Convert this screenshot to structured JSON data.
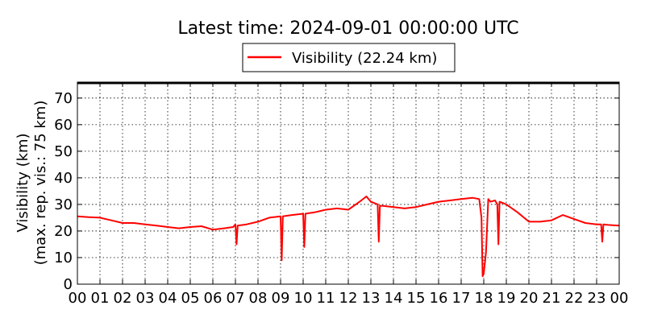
{
  "chart_data": {
    "type": "line",
    "title": "Latest time: 2024-09-01 00:00:00 UTC",
    "ylabel_line1": "Visibility (km)",
    "ylabel_line2": "(max. rep. vis.: 75 km)",
    "xlabel": "",
    "ylim": [
      0,
      76
    ],
    "xlim": [
      0,
      24
    ],
    "grid": true,
    "legend_position": "top-center-outside",
    "yticks": [
      0,
      10,
      20,
      30,
      40,
      50,
      60,
      70
    ],
    "xticks": [
      0,
      1,
      2,
      3,
      4,
      5,
      6,
      7,
      8,
      9,
      10,
      11,
      12,
      13,
      14,
      15,
      16,
      17,
      18,
      19,
      20,
      21,
      22,
      23,
      24
    ],
    "xtick_labels": [
      "00",
      "01",
      "02",
      "03",
      "04",
      "05",
      "06",
      "07",
      "08",
      "09",
      "10",
      "11",
      "12",
      "13",
      "14",
      "15",
      "16",
      "17",
      "18",
      "19",
      "20",
      "21",
      "22",
      "23",
      "00"
    ],
    "series": [
      {
        "name": "Visibility (22.24 km)",
        "color": "#ff0000",
        "x": [
          0.0,
          0.5,
          1.0,
          1.5,
          2.0,
          2.5,
          3.0,
          3.5,
          4.0,
          4.5,
          5.0,
          5.5,
          6.0,
          6.5,
          6.9,
          7.0,
          7.05,
          7.1,
          7.5,
          8.0,
          8.5,
          9.0,
          9.05,
          9.1,
          9.5,
          10.0,
          10.05,
          10.1,
          10.5,
          11.0,
          11.5,
          12.0,
          12.5,
          12.8,
          13.0,
          13.3,
          13.35,
          13.4,
          13.5,
          14.0,
          14.5,
          15.0,
          15.5,
          16.0,
          16.5,
          17.0,
          17.5,
          17.8,
          17.9,
          17.95,
          18.0,
          18.1,
          18.2,
          18.3,
          18.5,
          18.6,
          18.65,
          18.7,
          19.0,
          19.5,
          20.0,
          20.5,
          21.0,
          21.5,
          22.0,
          22.5,
          23.0,
          23.2,
          23.25,
          23.3,
          23.5,
          24.0
        ],
        "y": [
          25.5,
          25.2,
          25.0,
          24.0,
          23.0,
          23.0,
          22.5,
          22.0,
          21.5,
          21.0,
          21.5,
          21.8,
          20.5,
          21.0,
          21.5,
          22.5,
          15.0,
          22.0,
          22.5,
          23.5,
          25.0,
          25.5,
          9.0,
          25.5,
          26.0,
          26.5,
          14.0,
          26.5,
          27.0,
          28.0,
          28.5,
          28.0,
          31.0,
          33.0,
          31.0,
          30.0,
          16.0,
          29.5,
          29.5,
          29.0,
          28.5,
          29.0,
          30.0,
          31.0,
          31.5,
          32.0,
          32.5,
          32.0,
          25.0,
          3.0,
          4.0,
          12.0,
          32.0,
          31.0,
          31.5,
          30.0,
          15.0,
          31.0,
          30.0,
          27.0,
          23.5,
          23.5,
          24.0,
          26.0,
          24.5,
          23.0,
          22.5,
          22.5,
          16.0,
          22.5,
          22.3,
          22.0
        ]
      }
    ]
  }
}
